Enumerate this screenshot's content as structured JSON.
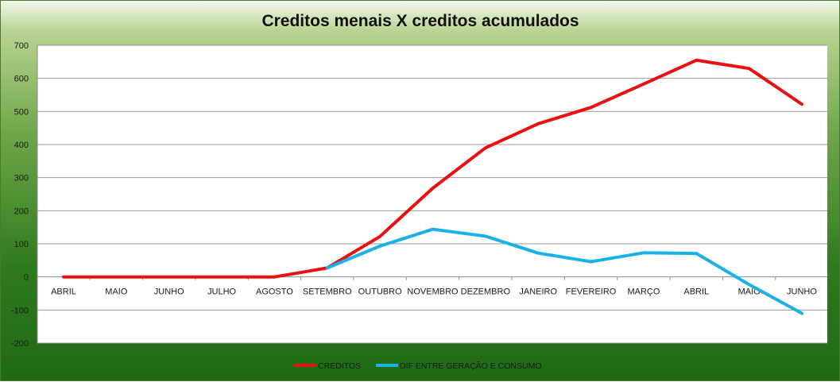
{
  "chart_data": {
    "type": "line",
    "title": "Creditos menais X creditos acumulados",
    "xlabel": "",
    "ylabel": "",
    "categories": [
      "ABRIL",
      "MAIO",
      "JUNHO",
      "JULHO",
      "AGOSTO",
      "SETEMBRO",
      "OUTUBRO",
      "NOVEMBRO",
      "DEZEMBRO",
      "JANEIRO",
      "FEVEREIRO",
      "MARÇO",
      "ABRIL",
      "MAIO",
      "JUNHO"
    ],
    "ylim": [
      -200,
      700
    ],
    "yticks": [
      700,
      600,
      500,
      400,
      300,
      200,
      100,
      0,
      -100,
      -200
    ],
    "grid": "horizontal",
    "legend_position": "bottom",
    "series": [
      {
        "name": "CREDITOS",
        "color": "#e81010",
        "values": [
          0,
          0,
          0,
          0,
          0,
          27,
          122,
          268,
          390,
          463,
          512,
          583,
          655,
          630,
          522
        ]
      },
      {
        "name": "DIF ENTRE GERAÇÃO E CONSUMO",
        "color": "#1ab2e6",
        "values": [
          null,
          null,
          null,
          null,
          null,
          27,
          93,
          144,
          123,
          72,
          46,
          73,
          71,
          -23,
          -110
        ]
      }
    ]
  }
}
